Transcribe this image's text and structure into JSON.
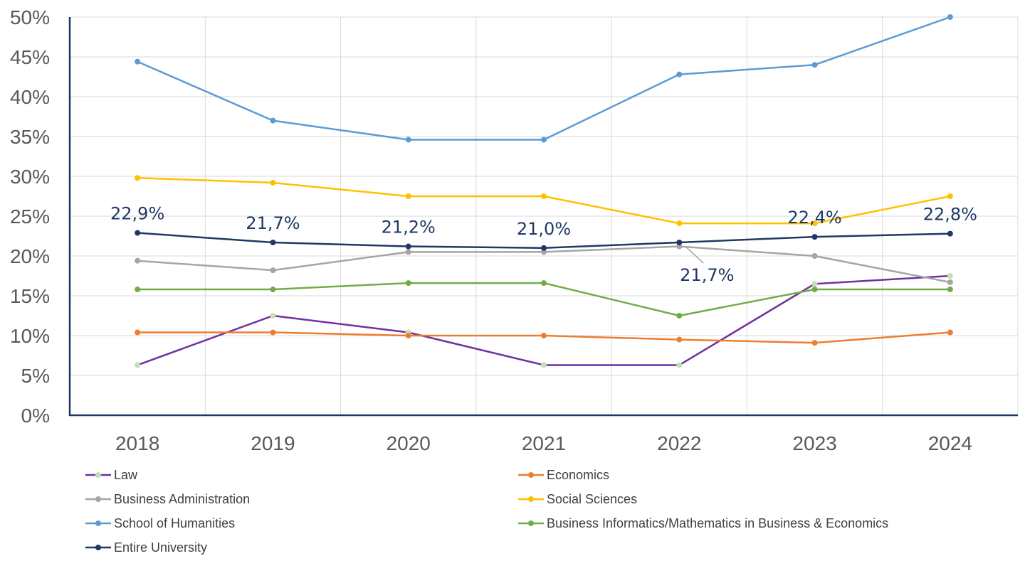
{
  "chart_data": {
    "type": "line",
    "title": "",
    "xlabel": "",
    "ylabel": "",
    "x": [
      "2018",
      "2019",
      "2020",
      "2021",
      "2022",
      "2023",
      "2024"
    ],
    "ylim": [
      0,
      50
    ],
    "yticks": [
      0,
      5,
      10,
      15,
      20,
      25,
      30,
      35,
      40,
      45,
      50
    ],
    "ytick_labels": [
      "0%",
      "5%",
      "10%",
      "15%",
      "20%",
      "25%",
      "30%",
      "35%",
      "40%",
      "45%",
      "50%"
    ],
    "grid": true,
    "legend_position": "bottom",
    "series": [
      {
        "name": "Law",
        "color": "#7030a0",
        "marker_color": "#c5e0b4",
        "values": [
          6.3,
          12.5,
          10.4,
          6.3,
          6.3,
          16.5,
          17.5
        ]
      },
      {
        "name": "Economics",
        "color": "#ed7d31",
        "marker_color": "#ed7d31",
        "values": [
          10.4,
          10.4,
          10.0,
          10.0,
          9.5,
          9.1,
          10.4
        ]
      },
      {
        "name": "Business Administration",
        "color": "#a5a5a5",
        "marker_color": "#a5a5a5",
        "values": [
          19.4,
          18.2,
          20.5,
          20.5,
          21.2,
          20.0,
          16.7
        ]
      },
      {
        "name": "Social Sciences",
        "color": "#ffc000",
        "marker_color": "#ffc000",
        "values": [
          29.8,
          29.2,
          27.5,
          27.5,
          24.1,
          24.1,
          27.5
        ]
      },
      {
        "name": "School of Humanities",
        "color": "#5b9bd5",
        "marker_color": "#5b9bd5",
        "values": [
          44.4,
          37.0,
          34.6,
          34.6,
          42.8,
          44.0,
          50.0
        ]
      },
      {
        "name": "Business Informatics/Mathematics in Business & Economics",
        "color": "#70ad47",
        "marker_color": "#70ad47",
        "values": [
          15.8,
          15.8,
          16.6,
          16.6,
          12.5,
          15.8,
          15.8
        ]
      },
      {
        "name": "Entire University",
        "color": "#1f3864",
        "marker_color": "#1f3864",
        "values": [
          22.9,
          21.7,
          21.2,
          21.0,
          21.7,
          22.4,
          22.8
        ]
      }
    ],
    "data_labels": [
      "22,9%",
      "21,7%",
      "21,2%",
      "21,0%",
      "21,7%",
      "22,4%",
      "22,8%"
    ]
  }
}
